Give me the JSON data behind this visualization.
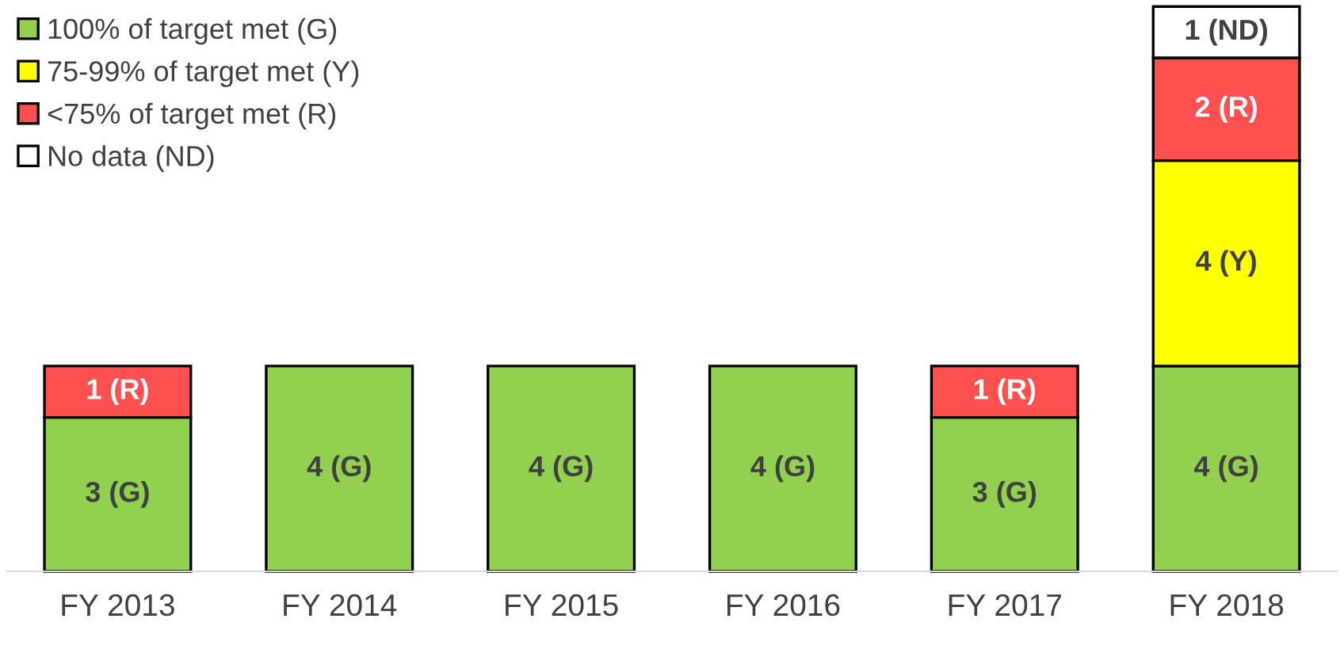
{
  "chart_data": {
    "type": "bar",
    "stacked": true,
    "legend": "top left",
    "tick_labels": "x",
    "grid": false,
    "categories": [
      "FY 2013",
      "FY 2014",
      "FY 2015",
      "FY 2016",
      "FY 2017",
      "FY 2018"
    ],
    "series": [
      {
        "name": "100% of target met (G)",
        "color": "#92d050",
        "values": [
          3,
          4,
          4,
          4,
          3,
          4
        ],
        "value_labels": [
          "3 (G)",
          "4 (G)",
          "4 (G)",
          "4 (G)",
          "3 (G)",
          "4 (G)"
        ]
      },
      {
        "name": "75-99% of target met (Y)",
        "color": "#ffff00",
        "values": [
          null,
          null,
          null,
          null,
          null,
          4
        ],
        "value_labels": [
          null,
          null,
          null,
          null,
          null,
          "4 (Y)"
        ]
      },
      {
        "name": "<75% of target met (R)",
        "color": "#ff5050",
        "values": [
          1,
          null,
          null,
          null,
          1,
          2
        ],
        "value_labels": [
          "1 (R)",
          null,
          null,
          null,
          "1 (R)",
          "2 (R)"
        ]
      },
      {
        "name": "No data (ND)",
        "color": "#ffffff",
        "values": [
          null,
          null,
          null,
          null,
          null,
          1
        ],
        "value_labels": [
          null,
          null,
          null,
          null,
          null,
          "1 (ND)"
        ]
      }
    ]
  }
}
